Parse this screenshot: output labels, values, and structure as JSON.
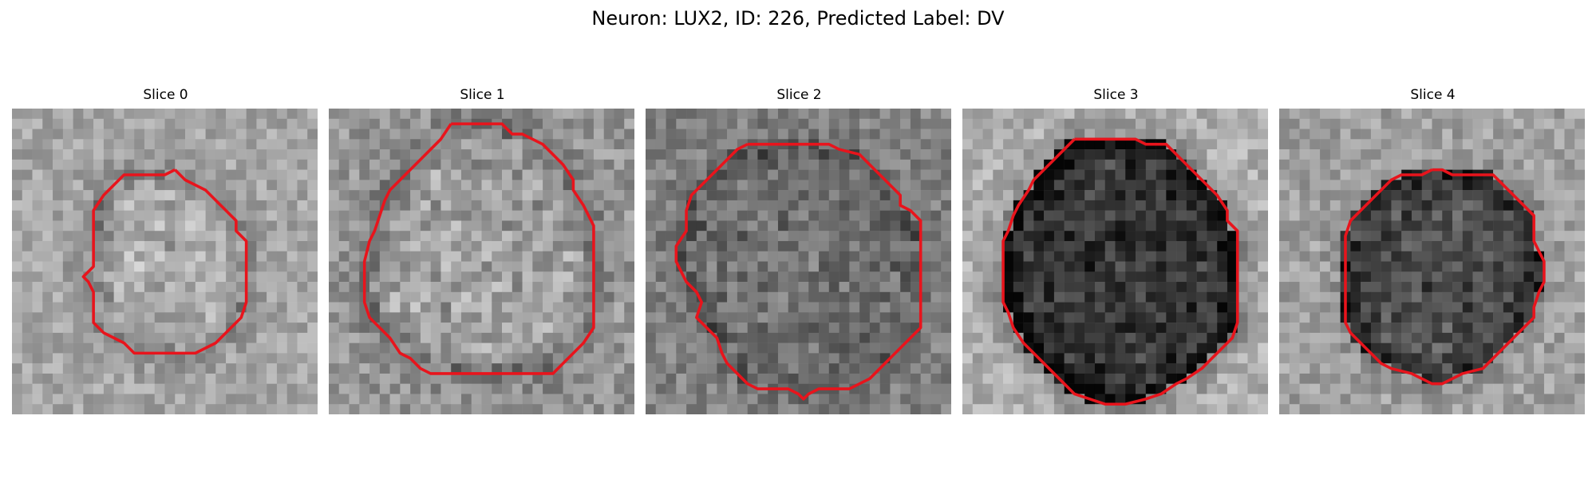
{
  "figure": {
    "title": "Neuron: LUX2, ID: 226, Predicted Label: DV"
  },
  "colors": {
    "contour": "#e8141c",
    "colormap": "gray"
  },
  "panels": [
    {
      "title": "Slice 0",
      "seed": 11,
      "base": 165,
      "bg_amp": 28,
      "inner_delta": 5,
      "ring_delta": -45,
      "contour": [
        [
          16.0,
          6.0
        ],
        [
          17.0,
          7.0
        ],
        [
          19.0,
          8.0
        ],
        [
          20.0,
          9.0
        ],
        [
          21.0,
          10.0
        ],
        [
          22.0,
          11.0
        ],
        [
          22.0,
          12.0
        ],
        [
          23.0,
          13.0
        ],
        [
          23.0,
          16.0
        ],
        [
          23.0,
          19.0
        ],
        [
          22.5,
          20.5
        ],
        [
          22.0,
          21.0
        ],
        [
          21.0,
          22.0
        ],
        [
          20.0,
          23.0
        ],
        [
          18.0,
          24.0
        ],
        [
          15.0,
          24.0
        ],
        [
          12.0,
          24.0
        ],
        [
          11.0,
          23.0
        ],
        [
          9.0,
          22.0
        ],
        [
          8.0,
          21.0
        ],
        [
          8.0,
          19.0
        ],
        [
          8.0,
          18.0
        ],
        [
          7.5,
          17.0
        ],
        [
          7.0,
          16.5
        ],
        [
          8.0,
          15.5
        ],
        [
          8.0,
          13.0
        ],
        [
          8.0,
          10.0
        ],
        [
          9.0,
          8.5
        ],
        [
          10.0,
          7.5
        ],
        [
          11.0,
          6.5
        ],
        [
          13.0,
          6.5
        ],
        [
          15.0,
          6.5
        ],
        [
          16.0,
          6.0
        ]
      ]
    },
    {
      "title": "Slice 1",
      "seed": 23,
      "base": 150,
      "bg_amp": 32,
      "inner_delta": 10,
      "ring_delta": -50,
      "contour": [
        [
          12.0,
          1.5
        ],
        [
          17.0,
          1.5
        ],
        [
          18.0,
          2.5
        ],
        [
          19.0,
          2.5
        ],
        [
          20.0,
          3.0
        ],
        [
          21.0,
          3.5
        ],
        [
          22.0,
          4.5
        ],
        [
          23.0,
          5.5
        ],
        [
          24.0,
          7.0
        ],
        [
          24.0,
          8.0
        ],
        [
          25.0,
          9.5
        ],
        [
          26.0,
          11.5
        ],
        [
          26.0,
          14.0
        ],
        [
          26.0,
          17.0
        ],
        [
          26.0,
          21.5
        ],
        [
          25.0,
          23.0
        ],
        [
          24.0,
          24.0
        ],
        [
          23.0,
          25.0
        ],
        [
          22.0,
          26.0
        ],
        [
          20.0,
          26.0
        ],
        [
          18.0,
          26.0
        ],
        [
          16.0,
          26.0
        ],
        [
          14.0,
          26.0
        ],
        [
          12.0,
          26.0
        ],
        [
          10.0,
          26.0
        ],
        [
          9.0,
          25.5
        ],
        [
          8.0,
          24.5
        ],
        [
          7.0,
          24.0
        ],
        [
          6.0,
          22.5
        ],
        [
          5.0,
          21.5
        ],
        [
          4.0,
          20.5
        ],
        [
          3.5,
          19.0
        ],
        [
          3.5,
          17.0
        ],
        [
          3.5,
          15.0
        ],
        [
          4.0,
          13.0
        ],
        [
          4.5,
          12.0
        ],
        [
          5.0,
          10.5
        ],
        [
          5.5,
          9.0
        ],
        [
          6.0,
          8.0
        ],
        [
          7.0,
          7.0
        ],
        [
          8.0,
          6.0
        ],
        [
          9.0,
          5.0
        ],
        [
          10.0,
          4.0
        ],
        [
          11.0,
          3.0
        ],
        [
          12.0,
          1.5
        ]
      ]
    },
    {
      "title": "Slice 2",
      "seed": 37,
      "base": 130,
      "bg_amp": 30,
      "inner_delta": -20,
      "ring_delta": -30,
      "contour": [
        [
          10.0,
          3.5
        ],
        [
          11.0,
          3.5
        ],
        [
          12.0,
          3.5
        ],
        [
          14.0,
          3.5
        ],
        [
          16.0,
          3.5
        ],
        [
          18.0,
          3.5
        ],
        [
          19.0,
          4.0
        ],
        [
          21.0,
          4.5
        ],
        [
          22.0,
          5.5
        ],
        [
          23.0,
          6.5
        ],
        [
          24.0,
          7.5
        ],
        [
          25.0,
          8.5
        ],
        [
          25.0,
          9.5
        ],
        [
          26.0,
          10.0
        ],
        [
          27.0,
          11.0
        ],
        [
          27.0,
          13.0
        ],
        [
          27.0,
          15.0
        ],
        [
          27.0,
          17.0
        ],
        [
          27.0,
          19.0
        ],
        [
          27.0,
          21.5
        ],
        [
          26.0,
          22.5
        ],
        [
          25.0,
          23.5
        ],
        [
          24.0,
          24.5
        ],
        [
          23.0,
          25.5
        ],
        [
          22.0,
          26.5
        ],
        [
          21.0,
          27.0
        ],
        [
          20.0,
          27.5
        ],
        [
          17.0,
          27.5
        ],
        [
          16.0,
          28.0
        ],
        [
          15.5,
          28.5
        ],
        [
          15.0,
          28.0
        ],
        [
          14.0,
          27.5
        ],
        [
          11.0,
          27.5
        ],
        [
          10.0,
          27.0
        ],
        [
          9.0,
          26.0
        ],
        [
          8.0,
          25.0
        ],
        [
          7.5,
          24.0
        ],
        [
          7.0,
          22.5
        ],
        [
          6.0,
          21.5
        ],
        [
          5.0,
          20.5
        ],
        [
          5.5,
          19.0
        ],
        [
          5.0,
          18.0
        ],
        [
          4.0,
          17.0
        ],
        [
          3.5,
          16.0
        ],
        [
          3.0,
          15.0
        ],
        [
          3.0,
          13.5
        ],
        [
          4.0,
          12.0
        ],
        [
          4.0,
          10.0
        ],
        [
          4.5,
          8.5
        ],
        [
          5.0,
          8.0
        ],
        [
          6.0,
          7.0
        ],
        [
          7.0,
          6.0
        ],
        [
          8.0,
          5.0
        ],
        [
          9.0,
          4.0
        ],
        [
          10.0,
          3.5
        ]
      ]
    },
    {
      "title": "Slice 3",
      "seed": 53,
      "base": 175,
      "bg_amp": 30,
      "inner_delta": -120,
      "ring_delta": -70,
      "contour": [
        [
          11.0,
          3.0
        ],
        [
          14.0,
          3.0
        ],
        [
          17.0,
          3.0
        ],
        [
          18.0,
          3.5
        ],
        [
          20.0,
          3.5
        ],
        [
          21.0,
          4.5
        ],
        [
          22.0,
          5.5
        ],
        [
          23.0,
          6.5
        ],
        [
          24.0,
          7.5
        ],
        [
          25.0,
          8.5
        ],
        [
          26.0,
          10.0
        ],
        [
          26.0,
          11.0
        ],
        [
          27.0,
          12.0
        ],
        [
          27.0,
          14.0
        ],
        [
          27.0,
          16.0
        ],
        [
          27.0,
          19.0
        ],
        [
          27.0,
          21.0
        ],
        [
          26.5,
          22.5
        ],
        [
          25.5,
          23.5
        ],
        [
          24.5,
          24.5
        ],
        [
          23.5,
          25.5
        ],
        [
          22.0,
          26.5
        ],
        [
          21.0,
          27.0
        ],
        [
          19.5,
          28.0
        ],
        [
          18.0,
          28.5
        ],
        [
          16.0,
          29.0
        ],
        [
          14.0,
          29.0
        ],
        [
          12.5,
          28.5
        ],
        [
          11.0,
          28.0
        ],
        [
          10.0,
          27.0
        ],
        [
          9.0,
          26.0
        ],
        [
          8.0,
          25.0
        ],
        [
          7.0,
          24.0
        ],
        [
          6.0,
          23.0
        ],
        [
          5.0,
          21.5
        ],
        [
          4.5,
          20.0
        ],
        [
          4.0,
          19.0
        ],
        [
          4.0,
          17.0
        ],
        [
          4.0,
          15.0
        ],
        [
          4.0,
          13.0
        ],
        [
          4.5,
          12.0
        ],
        [
          5.0,
          10.5
        ],
        [
          5.5,
          9.5
        ],
        [
          6.5,
          8.0
        ],
        [
          7.0,
          7.0
        ],
        [
          8.0,
          6.0
        ],
        [
          9.0,
          5.0
        ],
        [
          10.0,
          4.0
        ],
        [
          11.0,
          3.0
        ]
      ]
    },
    {
      "title": "Slice 4",
      "seed": 71,
      "base": 160,
      "bg_amp": 30,
      "inner_delta": -85,
      "ring_delta": -40,
      "contour": [
        [
          15.0,
          6.0
        ],
        [
          16.0,
          6.0
        ],
        [
          17.0,
          6.5
        ],
        [
          19.0,
          6.5
        ],
        [
          21.0,
          6.5
        ],
        [
          22.0,
          7.5
        ],
        [
          23.0,
          8.5
        ],
        [
          24.0,
          9.5
        ],
        [
          25.0,
          10.5
        ],
        [
          25.0,
          12.0
        ],
        [
          25.0,
          13.0
        ],
        [
          25.5,
          14.0
        ],
        [
          26.0,
          15.0
        ],
        [
          26.0,
          17.0
        ],
        [
          25.5,
          18.0
        ],
        [
          25.0,
          19.5
        ],
        [
          25.0,
          20.5
        ],
        [
          24.0,
          21.5
        ],
        [
          23.0,
          22.5
        ],
        [
          22.0,
          23.5
        ],
        [
          21.0,
          24.5
        ],
        [
          20.0,
          25.5
        ],
        [
          18.0,
          26.0
        ],
        [
          17.0,
          26.5
        ],
        [
          16.0,
          27.0
        ],
        [
          15.0,
          27.0
        ],
        [
          14.0,
          26.5
        ],
        [
          13.0,
          26.0
        ],
        [
          11.0,
          25.5
        ],
        [
          10.0,
          25.0
        ],
        [
          9.0,
          24.0
        ],
        [
          8.0,
          23.0
        ],
        [
          7.0,
          22.0
        ],
        [
          6.5,
          21.0
        ],
        [
          6.5,
          19.0
        ],
        [
          6.5,
          17.0
        ],
        [
          6.5,
          15.0
        ],
        [
          6.5,
          12.5
        ],
        [
          7.0,
          11.0
        ],
        [
          8.0,
          10.0
        ],
        [
          9.0,
          9.0
        ],
        [
          10.0,
          8.0
        ],
        [
          11.0,
          7.0
        ],
        [
          12.0,
          6.5
        ],
        [
          14.0,
          6.5
        ],
        [
          15.0,
          6.0
        ]
      ]
    }
  ]
}
